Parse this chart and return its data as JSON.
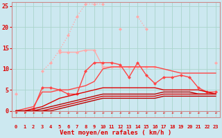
{
  "xlabel": "Vent moyen/en rafales ( km/h )",
  "background_color": "#cce8f0",
  "grid_color": "#aad4cc",
  "x": [
    0,
    1,
    2,
    3,
    4,
    5,
    6,
    7,
    8,
    9,
    10,
    11,
    12,
    13,
    14,
    15,
    16,
    17,
    18,
    19,
    20,
    21,
    22,
    23
  ],
  "series": [
    {
      "color": "#ffaaaa",
      "style": "dotted",
      "marker": "D",
      "markersize": 2.5,
      "lw": 1.0,
      "y": [
        4.0,
        null,
        null,
        9.5,
        11.5,
        14.5,
        18.0,
        22.5,
        25.5,
        25.5,
        25.5,
        null,
        19.5,
        null,
        22.5,
        19.5,
        null,
        null,
        null,
        null,
        null,
        null,
        null,
        null
      ]
    },
    {
      "color": "#ffaaaa",
      "style": "solid",
      "marker": "D",
      "markersize": 2.5,
      "lw": 1.0,
      "y": [
        null,
        null,
        null,
        null,
        null,
        14.0,
        14.0,
        14.0,
        14.5,
        14.5,
        10.5,
        10.5,
        10.5,
        10.5,
        10.5,
        10.5,
        10.5,
        null,
        null,
        null,
        null,
        null,
        null,
        11.5
      ]
    },
    {
      "color": "#ff4444",
      "style": "solid",
      "marker": "D",
      "markersize": 2.5,
      "lw": 1.0,
      "y": [
        0.0,
        0.0,
        0.5,
        5.5,
        5.5,
        5.0,
        4.0,
        4.0,
        9.5,
        11.5,
        11.5,
        11.5,
        11.0,
        8.0,
        11.5,
        8.5,
        6.5,
        8.0,
        8.0,
        8.5,
        8.0,
        5.5,
        4.5,
        4.5
      ]
    },
    {
      "color": "#ff4444",
      "style": "solid",
      "marker": null,
      "markersize": 0,
      "lw": 1.0,
      "y": [
        0.0,
        0.5,
        1.0,
        4.5,
        4.5,
        5.0,
        5.0,
        5.5,
        6.0,
        7.0,
        10.0,
        10.5,
        10.5,
        10.5,
        10.5,
        10.5,
        10.5,
        10.0,
        9.5,
        9.0,
        9.0,
        9.0,
        9.0,
        9.0
      ]
    },
    {
      "color": "#dd0000",
      "style": "solid",
      "marker": null,
      "markersize": 0,
      "lw": 1.0,
      "y": [
        0.0,
        0.0,
        0.5,
        1.0,
        2.0,
        3.0,
        3.5,
        4.0,
        4.5,
        5.0,
        5.5,
        5.5,
        5.5,
        5.5,
        5.5,
        5.5,
        5.5,
        5.0,
        5.0,
        5.0,
        5.0,
        5.0,
        4.5,
        4.0
      ]
    },
    {
      "color": "#bb0000",
      "style": "solid",
      "marker": null,
      "markersize": 0,
      "lw": 1.0,
      "y": [
        0.0,
        0.0,
        0.0,
        0.5,
        1.0,
        1.5,
        2.0,
        2.5,
        3.0,
        3.5,
        4.0,
        4.0,
        4.0,
        4.0,
        4.0,
        4.0,
        4.0,
        4.5,
        4.5,
        4.5,
        4.5,
        4.0,
        4.0,
        4.0
      ]
    },
    {
      "color": "#dd0000",
      "style": "solid",
      "marker": null,
      "markersize": 0,
      "lw": 1.0,
      "y": [
        0.0,
        0.0,
        0.0,
        0.0,
        0.5,
        1.0,
        1.5,
        2.0,
        2.5,
        3.0,
        3.5,
        3.5,
        3.5,
        3.5,
        3.5,
        3.5,
        3.5,
        4.0,
        4.0,
        4.0,
        4.0,
        4.0,
        4.0,
        4.0
      ]
    },
    {
      "color": "#bb0000",
      "style": "solid",
      "marker": null,
      "markersize": 0,
      "lw": 1.0,
      "y": [
        0.0,
        0.0,
        0.0,
        0.0,
        0.0,
        0.5,
        1.0,
        1.5,
        2.0,
        2.5,
        3.0,
        3.0,
        3.0,
        3.0,
        3.0,
        3.0,
        3.0,
        3.5,
        3.5,
        3.5,
        3.5,
        3.5,
        3.5,
        3.5
      ]
    }
  ],
  "ylim": [
    0,
    26
  ],
  "yticks": [
    0,
    5,
    10,
    15,
    20,
    25
  ],
  "xticks": [
    0,
    1,
    2,
    3,
    4,
    5,
    6,
    7,
    8,
    9,
    10,
    11,
    12,
    13,
    14,
    15,
    16,
    17,
    18,
    19,
    20,
    21,
    22,
    23
  ],
  "tick_color": "#dd0000",
  "label_color": "#dd0000",
  "arrow_color": "#dd4444",
  "axis_line_color": "#cc8888"
}
